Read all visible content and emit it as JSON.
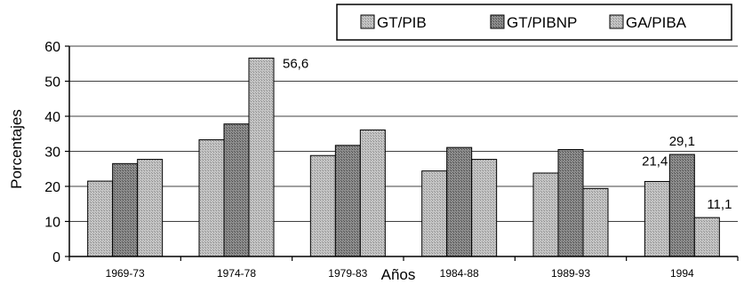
{
  "chart_data": {
    "type": "bar",
    "xlabel": "Años",
    "ylabel": "Porcentajes",
    "ylim": [
      0,
      60
    ],
    "yticks": [
      0,
      10,
      20,
      30,
      40,
      50,
      60
    ],
    "grid": true,
    "legend_position": "top-right",
    "categories": [
      "1969-73",
      "1974-78",
      "1979-83",
      "1984-88",
      "1989-93",
      "1994"
    ],
    "series": [
      {
        "name": "GT/PIB",
        "values": [
          21.5,
          33.3,
          28.8,
          24.4,
          23.8,
          21.4
        ],
        "color": "#b3b3b3"
      },
      {
        "name": "GT/PIBNP",
        "values": [
          26.5,
          37.8,
          31.7,
          31.1,
          30.5,
          29.1
        ],
        "color": "#808080"
      },
      {
        "name": "GA/PIBA",
        "values": [
          27.7,
          56.6,
          36.1,
          27.7,
          19.4,
          11.1
        ],
        "color": "#b3b3b3"
      }
    ],
    "annotations": [
      {
        "category": "1974-78",
        "series": "GA/PIBA",
        "text": "56,6"
      },
      {
        "category": "1994",
        "series": "GT/PIB",
        "text": "21,4"
      },
      {
        "category": "1994",
        "series": "GT/PIBNP",
        "text": "29,1"
      },
      {
        "category": "1994",
        "series": "GA/PIBA",
        "text": "11,1"
      }
    ]
  }
}
